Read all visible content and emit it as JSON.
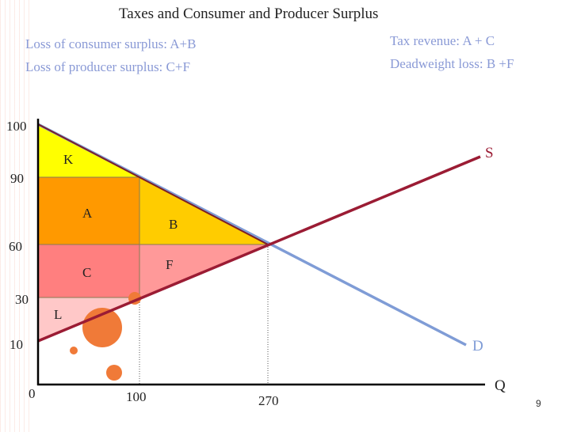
{
  "title": "Taxes and Consumer and Producer Surplus",
  "notes": {
    "consumer_loss": "Loss of consumer surplus: A+B",
    "producer_loss": "Loss of producer surplus: C+F",
    "tax_revenue": "Tax revenue: A + C",
    "deadweight": "Deadweight loss: B +F"
  },
  "axes": {
    "x_label": "Q",
    "y_ticks": [
      "100",
      "90",
      "60",
      "30",
      "10"
    ],
    "x_ticks": [
      "0",
      "100",
      "270"
    ]
  },
  "curves": {
    "supply": "S",
    "demand": "D"
  },
  "regions": [
    "K",
    "A",
    "B",
    "C",
    "F",
    "L"
  ],
  "page_number": "9",
  "colors": {
    "supply": "#9b1c34",
    "demand": "#7f9cd6",
    "K": "#ffff00",
    "A": "#ff9900",
    "B": "#ffcc00",
    "C": "#ff7f7f",
    "F": "#ff9999",
    "L": "#ffc8c8"
  }
}
